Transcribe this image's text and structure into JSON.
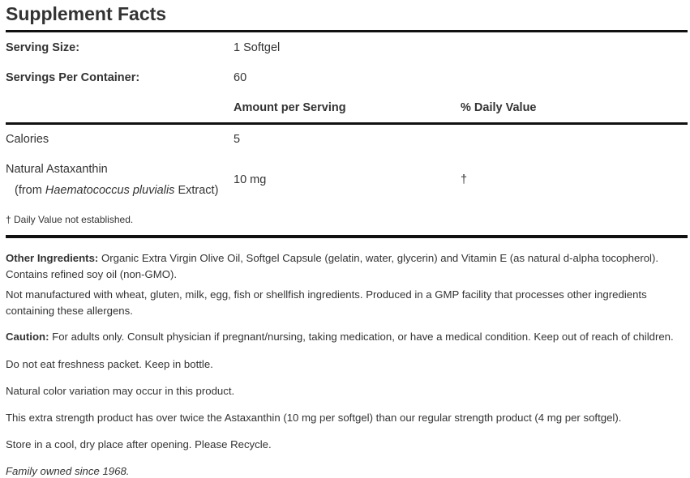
{
  "title": "Supplement Facts",
  "serving_size": {
    "label": "Serving Size:",
    "value": "1 Softgel"
  },
  "servings_per_container": {
    "label": "Servings Per Container:",
    "value": "60"
  },
  "columns": {
    "amount": "Amount per Serving",
    "daily_value": "% Daily Value"
  },
  "rows": [
    {
      "name": "Calories",
      "amount": "5",
      "dv": ""
    },
    {
      "name": "Natural Astaxanthin",
      "source_prefix": "(from ",
      "source_italic": "Haematococcus pluvialis",
      "source_suffix": " Extract)",
      "amount": "10 mg",
      "dv": "†"
    }
  ],
  "footnote": "† Daily Value not established.",
  "other_ingredients": {
    "label": "Other Ingredients:",
    "text": " Organic Extra Virgin Olive Oil, Softgel Capsule (gelatin, water, glycerin) and Vitamin E (as natural d-alpha tocopherol).",
    "line2": "Contains refined soy oil (non-GMO)."
  },
  "allergen": {
    "line1": "Not manufactured with wheat, gluten, milk, egg, fish or shellfish ingredients. Produced in a GMP facility that processes other ingredients",
    "line2": "containing these allergens."
  },
  "caution": {
    "label": "Caution:",
    "text": " For adults only. Consult physician if pregnant/nursing, taking medication, or have a medical condition. Keep out of reach of children."
  },
  "notes": [
    "Do not eat freshness packet. Keep in bottle.",
    "Natural color variation may occur in this product.",
    "This extra strength product has over twice the Astaxanthin (10 mg per softgel) than our regular strength product (4 mg per softgel).",
    "Store in a cool, dry place after opening. Please Recycle."
  ],
  "family": "Family owned since 1968."
}
